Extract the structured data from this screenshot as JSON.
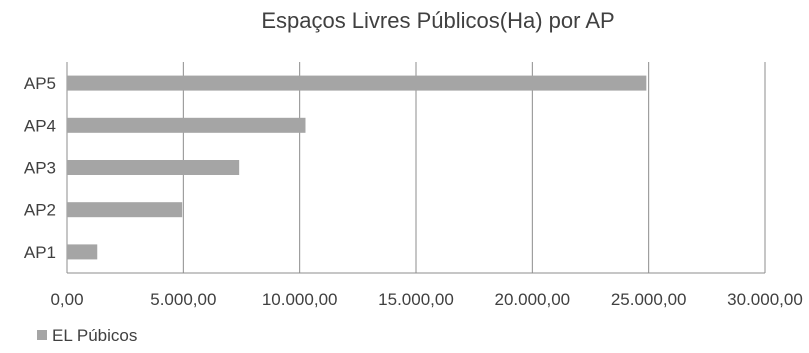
{
  "chart_data": {
    "type": "bar",
    "orientation": "horizontal",
    "title": "Espaços Livres Públicos(Ha) por AP",
    "categories": [
      "AP1",
      "AP2",
      "AP3",
      "AP4",
      "AP5"
    ],
    "series": [
      {
        "name": "EL Púbicos",
        "values": [
          1300,
          4950,
          7400,
          10250,
          24900
        ]
      }
    ],
    "x_ticks": [
      "0,00",
      "5.000,00",
      "10.000,00",
      "15.000,00",
      "20.000,00",
      "25.000,00",
      "30.000,00"
    ],
    "x_tick_values": [
      0,
      5000,
      10000,
      15000,
      20000,
      25000,
      30000
    ],
    "xlim": [
      0,
      30000
    ],
    "xlabel": "",
    "ylabel": "",
    "grid": "vertical",
    "legend_position": "bottom-left",
    "colors": {
      "bar": "#a5a5a5",
      "grid": "#8c8c8c",
      "text": "#404040"
    }
  }
}
